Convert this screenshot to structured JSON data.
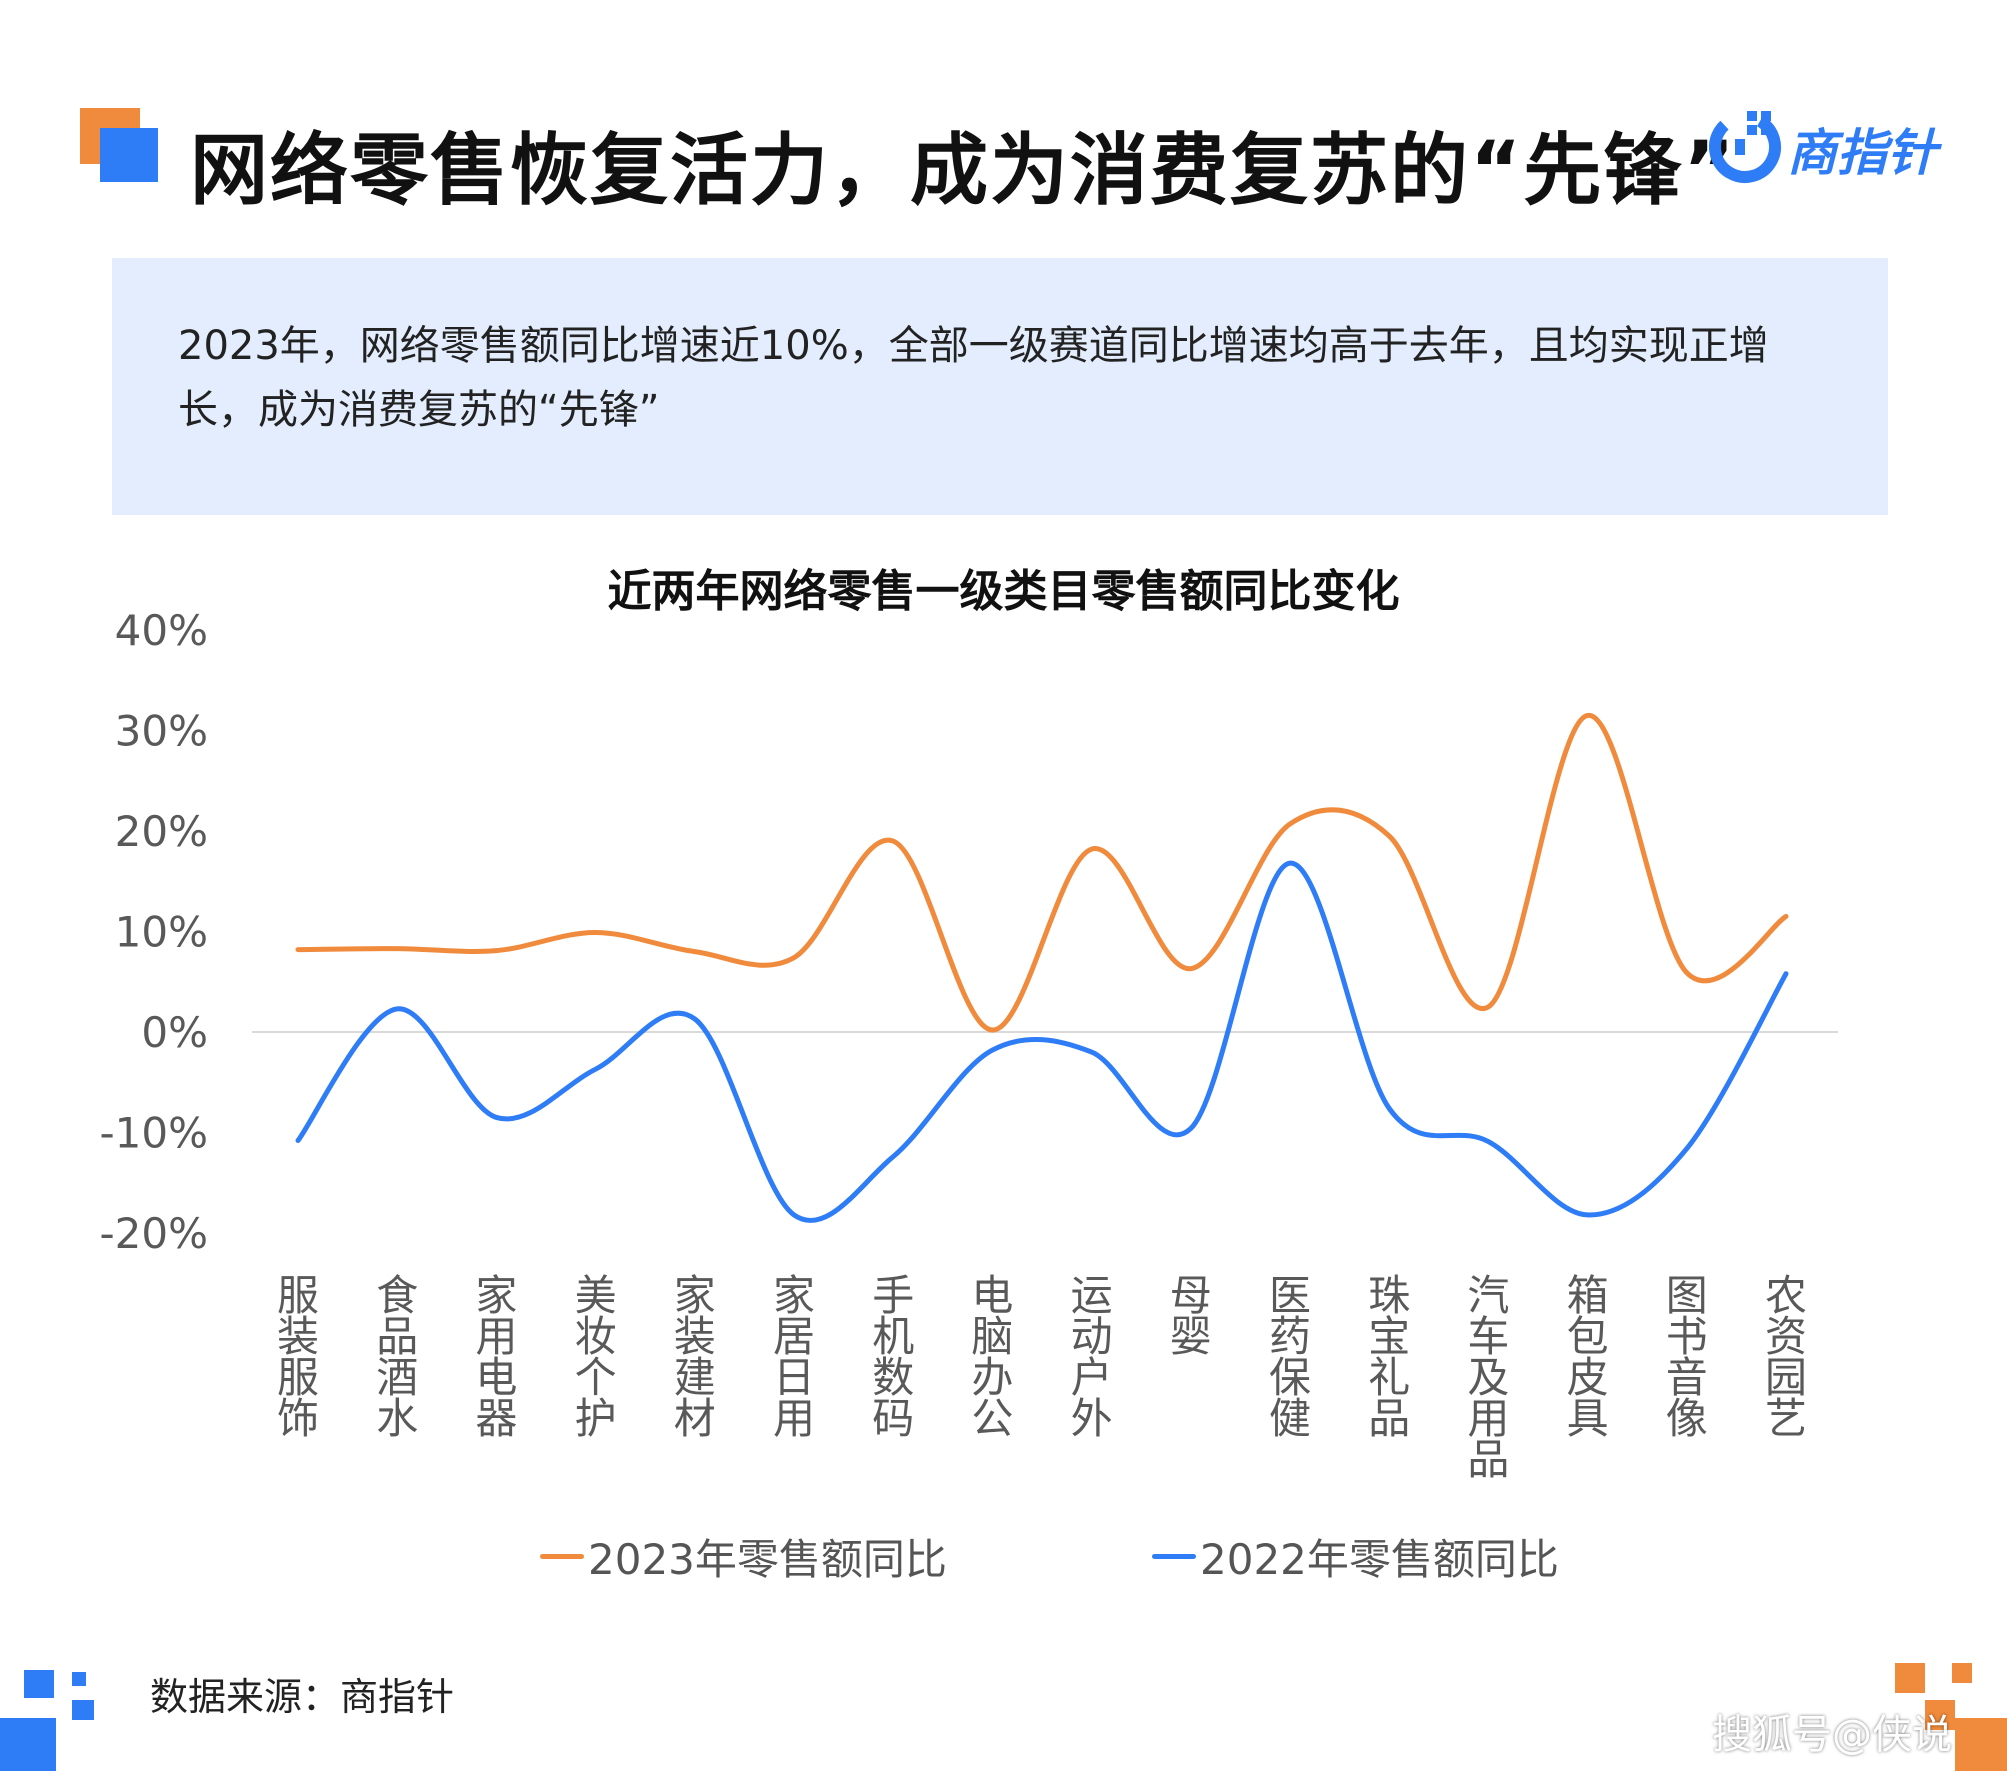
{
  "header": {
    "title": "网络零售恢复活力，成为消费复苏的“先锋”",
    "logo_text": "商指针"
  },
  "summary": {
    "text": "2023年，网络零售额同比增速近10%，全部一级赛道同比增速均高于去年，且均实现正增长，成为消费复苏的“先锋”"
  },
  "colors": {
    "accent_orange": "#f08a3c",
    "accent_blue": "#2f7df6",
    "summary_bg": "#e3edfd"
  },
  "icons": {
    "logo": "shangzhizhen-logo-icon"
  },
  "chart_data": {
    "type": "line",
    "title": "近两年网络零售一级类目零售额同比变化",
    "categories": [
      "服装服饰",
      "食品酒水",
      "家用电器",
      "美妆个护",
      "家装建材",
      "家居日用",
      "手机数码",
      "电脑办公",
      "运动户外",
      "母婴",
      "医药保健",
      "珠宝礼品",
      "汽车及用品",
      "箱包皮具",
      "图书音像",
      "农资园艺"
    ],
    "series": [
      {
        "name": "2023年零售额同比",
        "color": "#f08a3c",
        "values": [
          8.2,
          8.3,
          8.1,
          9.9,
          8.0,
          7.4,
          19.0,
          0.2,
          18.2,
          6.3,
          20.7,
          19.5,
          2.5,
          31.5,
          5.9,
          11.5
        ]
      },
      {
        "name": "2022年零售额同比",
        "color": "#2f7df6",
        "values": [
          -10.8,
          2.3,
          -8.5,
          -3.7,
          1.3,
          -18.2,
          -12.4,
          -1.8,
          -2.0,
          -9.6,
          16.8,
          -7.6,
          -10.9,
          -18.2,
          -11.6,
          5.8
        ]
      }
    ],
    "y_ticks": [
      "40%",
      "30%",
      "20%",
      "10%",
      "0%",
      "-10%",
      "-20%"
    ],
    "ylim": [
      -20,
      40
    ],
    "xlabel": "",
    "ylabel": "",
    "smooth": true,
    "grid": false,
    "legend_position": "bottom"
  },
  "footer": {
    "source": "数据来源：商指针",
    "watermark": "搜狐号@侠说"
  }
}
